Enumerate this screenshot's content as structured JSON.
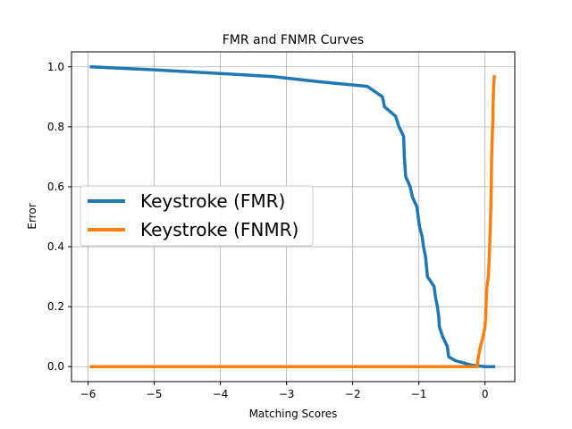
{
  "chart_data": {
    "type": "line",
    "title": "FMR and FNMR Curves",
    "xlabel": "Matching Scores",
    "ylabel": "Error",
    "xlim": [
      -6.25,
      0.45
    ],
    "ylim": [
      -0.05,
      1.05
    ],
    "xticks": [
      -6,
      -5,
      -4,
      -3,
      -2,
      -1,
      0
    ],
    "xtick_labels": [
      "−6",
      "−5",
      "−4",
      "−3",
      "−2",
      "−1",
      "0"
    ],
    "yticks": [
      0.0,
      0.2,
      0.4,
      0.6,
      0.8,
      1.0
    ],
    "ytick_labels": [
      "0.0",
      "0.2",
      "0.4",
      "0.6",
      "0.8",
      "1.0"
    ],
    "grid": true,
    "legend_position": "center-left",
    "series": [
      {
        "name": "Keystroke (FMR)",
        "color": "#1f77b4",
        "points": [
          [
            -5.95,
            1.0
          ],
          [
            -5.0,
            0.99
          ],
          [
            -4.0,
            0.978
          ],
          [
            -3.2,
            0.967
          ],
          [
            -2.5,
            0.95
          ],
          [
            -1.78,
            0.935
          ],
          [
            -1.55,
            0.9
          ],
          [
            -1.52,
            0.867
          ],
          [
            -1.35,
            0.835
          ],
          [
            -1.3,
            0.8
          ],
          [
            -1.23,
            0.768
          ],
          [
            -1.22,
            0.7
          ],
          [
            -1.2,
            0.634
          ],
          [
            -1.13,
            0.6
          ],
          [
            -1.1,
            0.567
          ],
          [
            -1.03,
            0.533
          ],
          [
            -1.01,
            0.5
          ],
          [
            -0.99,
            0.467
          ],
          [
            -0.95,
            0.433
          ],
          [
            -0.93,
            0.4
          ],
          [
            -0.9,
            0.367
          ],
          [
            -0.87,
            0.3
          ],
          [
            -0.77,
            0.267
          ],
          [
            -0.75,
            0.233
          ],
          [
            -0.72,
            0.2
          ],
          [
            -0.7,
            0.167
          ],
          [
            -0.69,
            0.133
          ],
          [
            -0.64,
            0.1
          ],
          [
            -0.57,
            0.067
          ],
          [
            -0.55,
            0.033
          ],
          [
            -0.45,
            0.02
          ],
          [
            -0.2,
            0.005
          ],
          [
            0.0,
            0.0
          ],
          [
            0.13,
            0.0
          ]
        ]
      },
      {
        "name": "Keystroke (FNMR)",
        "color": "#ff7f0e",
        "points": [
          [
            -5.95,
            0.0
          ],
          [
            -0.12,
            0.0
          ],
          [
            -0.1,
            0.033
          ],
          [
            -0.07,
            0.067
          ],
          [
            -0.03,
            0.1
          ],
          [
            0.0,
            0.133
          ],
          [
            0.01,
            0.167
          ],
          [
            0.02,
            0.233
          ],
          [
            0.03,
            0.267
          ],
          [
            0.05,
            0.3
          ],
          [
            0.07,
            0.4
          ],
          [
            0.09,
            0.533
          ],
          [
            0.1,
            0.7
          ],
          [
            0.11,
            0.767
          ],
          [
            0.12,
            0.833
          ],
          [
            0.12,
            0.867
          ],
          [
            0.13,
            0.933
          ],
          [
            0.14,
            0.967
          ]
        ]
      }
    ]
  }
}
